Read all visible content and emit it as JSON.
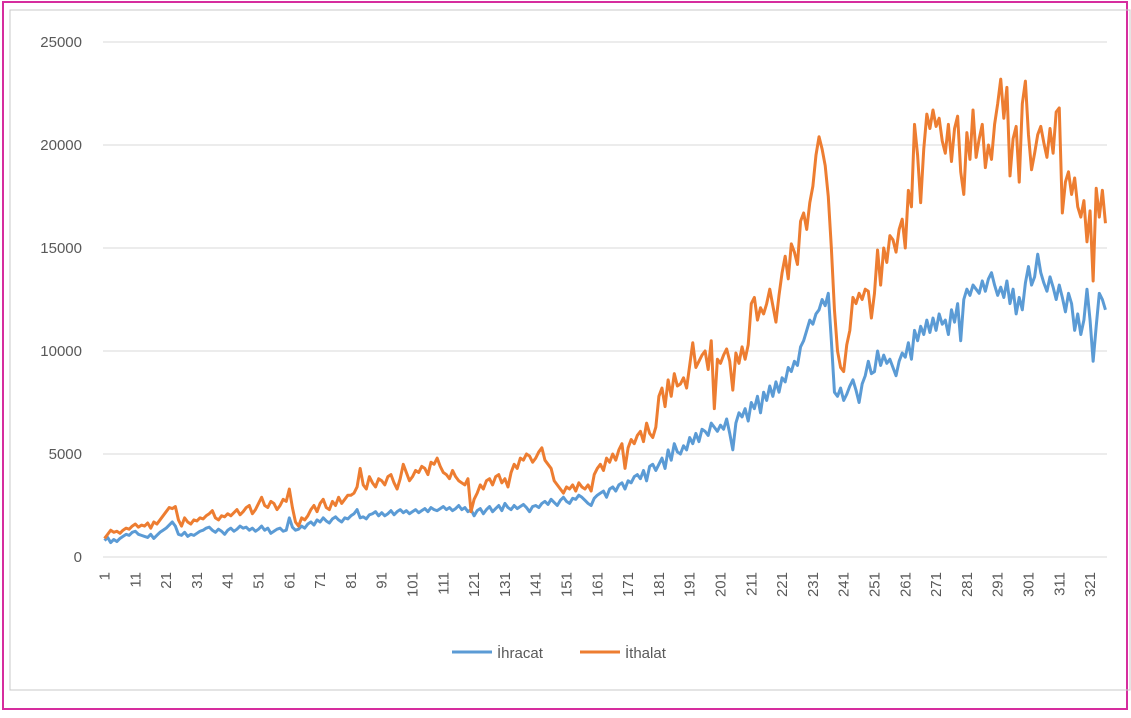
{
  "chart_data": {
    "type": "line",
    "categories": [
      "1",
      null,
      null,
      null,
      null,
      null,
      null,
      null,
      null,
      null,
      "11",
      null,
      null,
      null,
      null,
      null,
      null,
      null,
      null,
      null,
      "21",
      null,
      null,
      null,
      null,
      null,
      null,
      null,
      null,
      null,
      "31",
      null,
      null,
      null,
      null,
      null,
      null,
      null,
      null,
      null,
      "41",
      null,
      null,
      null,
      null,
      null,
      null,
      null,
      null,
      null,
      "51",
      null,
      null,
      null,
      null,
      null,
      null,
      null,
      null,
      null,
      "61",
      null,
      null,
      null,
      null,
      null,
      null,
      null,
      null,
      null,
      "71",
      null,
      null,
      null,
      null,
      null,
      null,
      null,
      null,
      null,
      "81",
      null,
      null,
      null,
      null,
      null,
      null,
      null,
      null,
      null,
      "91",
      null,
      null,
      null,
      null,
      null,
      null,
      null,
      null,
      null,
      "101",
      null,
      null,
      null,
      null,
      null,
      null,
      null,
      null,
      null,
      "111",
      null,
      null,
      null,
      null,
      null,
      null,
      null,
      null,
      null,
      "121",
      null,
      null,
      null,
      null,
      null,
      null,
      null,
      null,
      null,
      "131",
      null,
      null,
      null,
      null,
      null,
      null,
      null,
      null,
      null,
      "141",
      null,
      null,
      null,
      null,
      null,
      null,
      null,
      null,
      null,
      "151",
      null,
      null,
      null,
      null,
      null,
      null,
      null,
      null,
      null,
      "161",
      null,
      null,
      null,
      null,
      null,
      null,
      null,
      null,
      null,
      "171",
      null,
      null,
      null,
      null,
      null,
      null,
      null,
      null,
      null,
      "181",
      null,
      null,
      null,
      null,
      null,
      null,
      null,
      null,
      null,
      "191",
      null,
      null,
      null,
      null,
      null,
      null,
      null,
      null,
      null,
      "201",
      null,
      null,
      null,
      null,
      null,
      null,
      null,
      null,
      null,
      "211",
      null,
      null,
      null,
      null,
      null,
      null,
      null,
      null,
      null,
      "221",
      null,
      null,
      null,
      null,
      null,
      null,
      null,
      null,
      null,
      "231",
      null,
      null,
      null,
      null,
      null,
      null,
      null,
      null,
      null,
      "241",
      null,
      null,
      null,
      null,
      null,
      null,
      null,
      null,
      null,
      "251",
      null,
      null,
      null,
      null,
      null,
      null,
      null,
      null,
      null,
      "261",
      null,
      null,
      null,
      null,
      null,
      null,
      null,
      null,
      null,
      "271",
      null,
      null,
      null,
      null,
      null,
      null,
      null,
      null,
      null,
      "281",
      null,
      null,
      null,
      null,
      null,
      null,
      null,
      null,
      null,
      "291",
      null,
      null,
      null,
      null,
      null,
      null,
      null,
      null,
      null,
      "301",
      null,
      null,
      null,
      null,
      null,
      null,
      null,
      null,
      null,
      "311",
      null,
      null,
      null,
      null,
      null,
      null,
      null,
      null,
      null,
      "321",
      null,
      null,
      null,
      null,
      null
    ],
    "series": [
      {
        "name": "İhracat",
        "color": "#5b9bd5",
        "values": [
          800,
          950,
          700,
          850,
          750,
          900,
          1000,
          1100,
          1050,
          1200,
          1250,
          1100,
          1050,
          1000,
          950,
          1100,
          900,
          1050,
          1200,
          1300,
          1400,
          1550,
          1700,
          1500,
          1100,
          1050,
          1200,
          1000,
          1100,
          1050,
          1150,
          1250,
          1300,
          1400,
          1450,
          1300,
          1200,
          1350,
          1250,
          1100,
          1300,
          1400,
          1250,
          1350,
          1500,
          1400,
          1450,
          1300,
          1400,
          1250,
          1350,
          1500,
          1300,
          1400,
          1150,
          1250,
          1350,
          1400,
          1250,
          1300,
          1900,
          1450,
          1300,
          1350,
          1500,
          1400,
          1600,
          1700,
          1550,
          1800,
          1700,
          1900,
          1750,
          1650,
          1850,
          1950,
          1800,
          1700,
          1900,
          1850,
          2000,
          2100,
          2300,
          1900,
          1950,
          1850,
          2050,
          2100,
          2200,
          2000,
          2150,
          2000,
          2100,
          2250,
          2050,
          2200,
          2300,
          2150,
          2250,
          2100,
          2200,
          2300,
          2150,
          2250,
          2350,
          2200,
          2400,
          2300,
          2250,
          2350,
          2450,
          2300,
          2400,
          2250,
          2350,
          2500,
          2300,
          2400,
          2200,
          2300,
          2000,
          2250,
          2350,
          2100,
          2300,
          2450,
          2200,
          2350,
          2500,
          2250,
          2600,
          2400,
          2300,
          2500,
          2350,
          2450,
          2550,
          2400,
          2200,
          2450,
          2500,
          2400,
          2600,
          2700,
          2550,
          2800,
          2650,
          2500,
          2750,
          2900,
          2700,
          2600,
          2850,
          2800,
          3000,
          2900,
          2750,
          2600,
          2500,
          2850,
          3000,
          3100,
          3200,
          2900,
          3300,
          3400,
          3200,
          3500,
          3600,
          3300,
          3700,
          3600,
          3900,
          4000,
          3800,
          4200,
          3700,
          4400,
          4500,
          4200,
          4500,
          4800,
          4300,
          5200,
          4700,
          5500,
          5100,
          5000,
          5400,
          5200,
          5800,
          5500,
          6000,
          5600,
          6200,
          6100,
          5900,
          6500,
          6300,
          6100,
          6400,
          6200,
          6700,
          6000,
          5200,
          6500,
          7000,
          6800,
          7200,
          6600,
          7500,
          7200,
          7800,
          7000,
          8000,
          7600,
          8300,
          7800,
          8500,
          8000,
          8700,
          8500,
          9200,
          9000,
          9500,
          9300,
          10200,
          10500,
          11000,
          11500,
          11300,
          11800,
          12000,
          12500,
          12200,
          12800,
          10500,
          8000,
          7800,
          8200,
          7600,
          7900,
          8300,
          8600,
          8100,
          7500,
          8400,
          8800,
          9500,
          8900,
          9000,
          10000,
          9300,
          9800,
          9400,
          9600,
          9200,
          8800,
          9500,
          9900,
          9700,
          10400,
          9600,
          11000,
          10500,
          11200,
          10800,
          11500,
          10900,
          11600,
          11000,
          11800,
          11300,
          11500,
          10800,
          12000,
          11400,
          12300,
          10500,
          12500,
          13000,
          12700,
          13200,
          13000,
          12800,
          13400,
          12900,
          13500,
          13800,
          13200,
          12700,
          13100,
          12600,
          13400,
          12300,
          13000,
          11800,
          12600,
          12000,
          13300,
          14100,
          13200,
          13600,
          14700,
          13800,
          13300,
          12900,
          13600,
          13100,
          12500,
          13200,
          12600,
          11900,
          12800,
          12300,
          11000,
          11800,
          10800,
          11500,
          13000,
          11500,
          9500,
          11200,
          12800,
          12500,
          12000
        ]
      },
      {
        "name": "İthalat",
        "color": "#ed7d31",
        "values": [
          900,
          1100,
          1300,
          1200,
          1250,
          1150,
          1300,
          1400,
          1350,
          1500,
          1600,
          1450,
          1550,
          1500,
          1650,
          1400,
          1700,
          1600,
          1800,
          2000,
          2200,
          2400,
          2350,
          2450,
          1800,
          1500,
          1900,
          1700,
          1600,
          1800,
          1750,
          1900,
          1850,
          2000,
          2100,
          2250,
          1900,
          1800,
          2000,
          1950,
          2100,
          2000,
          2150,
          2300,
          2050,
          2200,
          2400,
          2500,
          2100,
          2300,
          2600,
          2900,
          2500,
          2400,
          2700,
          2600,
          2300,
          2500,
          2800,
          2700,
          3300,
          2400,
          1700,
          1500,
          1900,
          1800,
          2000,
          2300,
          2500,
          2200,
          2600,
          2800,
          2400,
          2300,
          2700,
          2500,
          2900,
          2600,
          2800,
          3000,
          3000,
          3100,
          3400,
          4300,
          3500,
          3300,
          3900,
          3600,
          3400,
          3800,
          3700,
          3500,
          3900,
          4000,
          3600,
          3300,
          3800,
          4500,
          4100,
          3700,
          3900,
          4200,
          4100,
          4400,
          4300,
          4000,
          4600,
          4500,
          4800,
          4400,
          4100,
          4000,
          3800,
          4200,
          3900,
          3700,
          3600,
          3500,
          3800,
          2200,
          2800,
          3100,
          3500,
          3300,
          3700,
          3800,
          3500,
          3900,
          4000,
          3600,
          3800,
          3400,
          4100,
          4500,
          4300,
          4800,
          4700,
          5000,
          4900,
          4600,
          4800,
          5100,
          5300,
          4700,
          4500,
          4300,
          3700,
          3500,
          3300,
          3100,
          3400,
          3300,
          3500,
          3200,
          3600,
          3400,
          3300,
          3500,
          3200,
          4000,
          4300,
          4500,
          4200,
          4800,
          4600,
          5000,
          4700,
          5200,
          5500,
          4300,
          5300,
          5700,
          5500,
          5900,
          6100,
          5600,
          6500,
          6000,
          5800,
          6300,
          7800,
          8200,
          7300,
          8600,
          7800,
          8900,
          8300,
          8400,
          8700,
          8200,
          9300,
          10400,
          9200,
          9500,
          9800,
          10000,
          9100,
          10500,
          7200,
          9600,
          9400,
          9800,
          10100,
          9500,
          8100,
          9900,
          9400,
          10200,
          9600,
          10300,
          12300,
          12600,
          11500,
          12100,
          11800,
          12300,
          13000,
          12200,
          11400,
          12700,
          13800,
          14600,
          13500,
          15200,
          14800,
          14200,
          16300,
          16700,
          15900,
          17200,
          18000,
          19500,
          20400,
          19800,
          19000,
          17500,
          15000,
          12000,
          10000,
          9200,
          9000,
          10300,
          11000,
          12600,
          12300,
          12800,
          12500,
          13000,
          12900,
          11600,
          12800,
          14900,
          13200,
          15000,
          14300,
          15600,
          15400,
          14800,
          15900,
          16400,
          15000,
          17800,
          17000,
          21000,
          19500,
          17200,
          19800,
          21500,
          20800,
          21700,
          20900,
          21300,
          20200,
          19600,
          21000,
          19200,
          20800,
          21400,
          18700,
          17600,
          20600,
          19300,
          21700,
          19400,
          20300,
          21000,
          18900,
          20000,
          19300,
          21000,
          22000,
          23200,
          21300,
          22800,
          18500,
          20300,
          20900,
          18200,
          22000,
          23100,
          20500,
          18800,
          19600,
          20500,
          20900,
          20100,
          19400,
          20800,
          19600,
          21600,
          21800,
          16700,
          18200,
          18700,
          17600,
          18400,
          17000,
          16500,
          17300,
          15300,
          16800,
          13400,
          17900,
          16500,
          17800,
          16200
        ]
      }
    ],
    "ylim": [
      0,
      25000
    ],
    "yticks": [
      0,
      5000,
      10000,
      15000,
      20000,
      25000
    ],
    "grid": true,
    "legend": "bottom"
  }
}
